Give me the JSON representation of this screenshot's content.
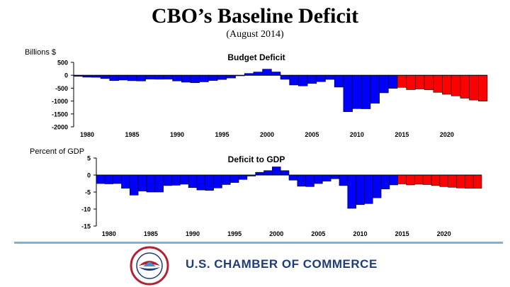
{
  "title": "CBO’s Baseline Deficit",
  "subtitle": "(August 2014)",
  "footer": {
    "org_name": "U.S. CHAMBER OF COMMERCE",
    "logo_text": "U.S. CHAMBER OF COMMERCE"
  },
  "colors": {
    "historical": "#0000FF",
    "projected": "#FF0000",
    "accent_line": "#7FB2D6",
    "org_text": "#1F3D7A"
  },
  "chart_data": [
    {
      "type": "bar",
      "title": "Budget Deficit",
      "ylabel": "Billions $",
      "xlabel": "",
      "ylim": [
        -2000,
        500
      ],
      "yticks": [
        500,
        0,
        -500,
        -1000,
        -1500,
        -2000
      ],
      "ytick_labels": [
        "500",
        "0",
        "-500",
        "-1000",
        "-1500",
        "-2000"
      ],
      "xtick_years": [
        1980,
        1985,
        1990,
        1995,
        2000,
        2005,
        2010,
        2015,
        2020
      ],
      "categories": [
        1979,
        1980,
        1981,
        1982,
        1983,
        1984,
        1985,
        1986,
        1987,
        1988,
        1989,
        1990,
        1991,
        1992,
        1993,
        1994,
        1995,
        1996,
        1997,
        1998,
        1999,
        2000,
        2001,
        2002,
        2003,
        2004,
        2005,
        2006,
        2007,
        2008,
        2009,
        2010,
        2011,
        2012,
        2013,
        2014,
        2015,
        2016,
        2017,
        2018,
        2019,
        2020,
        2021,
        2022,
        2023,
        2024
      ],
      "values": [
        -40,
        -74,
        -79,
        -128,
        -208,
        -185,
        -212,
        -221,
        -150,
        -155,
        -153,
        -221,
        -269,
        -290,
        -255,
        -203,
        -164,
        -107,
        -22,
        69,
        126,
        236,
        128,
        -158,
        -378,
        -413,
        -318,
        -248,
        -161,
        -459,
        -1413,
        -1294,
        -1300,
        -1087,
        -680,
        -506,
        -469,
        -556,
        -530,
        -560,
        -661,
        -737,
        -798,
        -887,
        -960,
        -1000
      ],
      "series_split": {
        "historical_through": 2014,
        "projected_from": 2015
      }
    },
    {
      "type": "bar",
      "title": "Deficit to GDP",
      "ylabel": "Percent of GDP",
      "xlabel": "",
      "ylim": [
        -15,
        5
      ],
      "yticks": [
        5,
        0,
        -5,
        -10,
        -15
      ],
      "ytick_labels": [
        "5",
        "0",
        "-5",
        "-10",
        "-15"
      ],
      "xtick_years": [
        1980,
        1985,
        1990,
        1995,
        2000,
        2005,
        2010,
        2015,
        2020
      ],
      "categories": [
        1979,
        1980,
        1981,
        1982,
        1983,
        1984,
        1985,
        1986,
        1987,
        1988,
        1989,
        1990,
        1991,
        1992,
        1993,
        1994,
        1995,
        1996,
        1997,
        1998,
        1999,
        2000,
        2001,
        2002,
        2003,
        2004,
        2005,
        2006,
        2007,
        2008,
        2009,
        2010,
        2011,
        2012,
        2013,
        2014,
        2015,
        2016,
        2017,
        2018,
        2019,
        2020,
        2021,
        2022,
        2023,
        2024
      ],
      "values": [
        -2.5,
        -2.6,
        -2.5,
        -3.9,
        -5.9,
        -4.7,
        -5.0,
        -5.0,
        -3.1,
        -3.0,
        -2.7,
        -3.7,
        -4.4,
        -4.5,
        -3.8,
        -2.8,
        -2.2,
        -1.3,
        -0.3,
        0.8,
        1.3,
        2.4,
        1.3,
        -1.5,
        -3.3,
        -3.4,
        -2.5,
        -1.8,
        -1.1,
        -3.1,
        -9.8,
        -8.7,
        -8.4,
        -6.7,
        -4.1,
        -2.9,
        -2.6,
        -2.9,
        -2.7,
        -2.8,
        -3.1,
        -3.4,
        -3.6,
        -3.8,
        -3.9,
        -3.9
      ],
      "series_split": {
        "historical_through": 2014,
        "projected_from": 2015
      }
    }
  ]
}
